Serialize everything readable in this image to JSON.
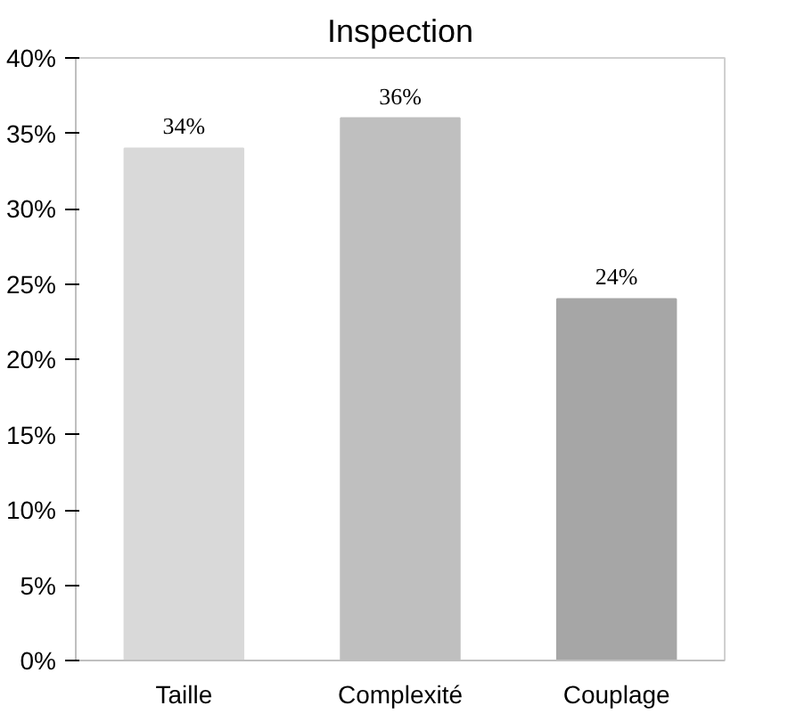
{
  "chart_data": {
    "type": "bar",
    "title": "Inspection",
    "categories": [
      "Taille",
      "Complexité",
      "Couplage"
    ],
    "values": [
      34,
      36,
      24
    ],
    "colors": [
      "#d9d9d9",
      "#bfbfbf",
      "#a6a6a6"
    ],
    "value_labels": [
      "34%",
      "36%",
      "24%"
    ],
    "ylim": [
      0,
      40
    ],
    "yticks": [
      {
        "value": 0,
        "label": "0%"
      },
      {
        "value": 5,
        "label": "5%"
      },
      {
        "value": 10,
        "label": "10%"
      },
      {
        "value": 15,
        "label": "15%"
      },
      {
        "value": 20,
        "label": "20%"
      },
      {
        "value": 25,
        "label": "25%"
      },
      {
        "value": 30,
        "label": "30%"
      },
      {
        "value": 35,
        "label": "35%"
      },
      {
        "value": 40,
        "label": "40%"
      }
    ],
    "grid": false
  }
}
